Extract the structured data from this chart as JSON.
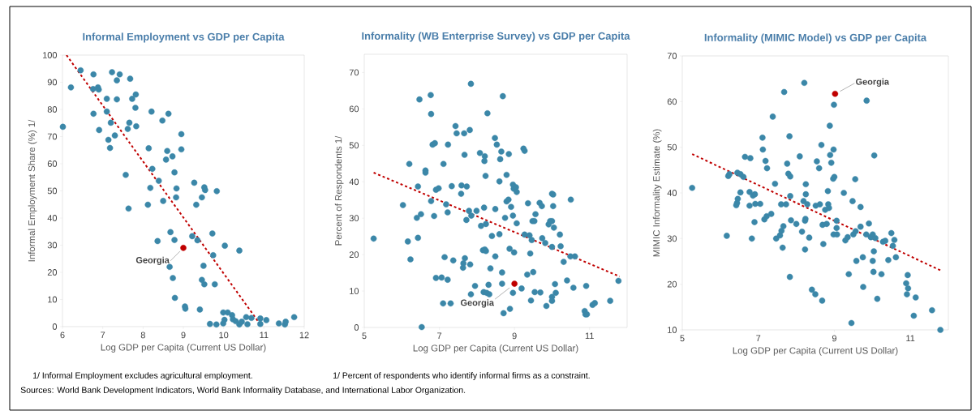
{
  "chart_data": [
    {
      "type": "scatter",
      "title": "Informal Employment vs GDP per Capita",
      "xlabel": "Log GDP per Capita (Current US Dollar)",
      "ylabel": "Informal Employment Share (%) 1/",
      "xlim": [
        6,
        12
      ],
      "ylim": [
        0,
        100
      ],
      "xticks": [
        6,
        7,
        8,
        9,
        10,
        11,
        12
      ],
      "yticks": [
        0,
        10,
        20,
        30,
        40,
        50,
        60,
        70,
        80,
        90,
        100
      ],
      "marker": "circle",
      "annotations": [
        "1/ Informal Employment excludes agricultural employment.",
        "Sources: World Bank Development Indicators, World Bank Informality Database, and International Labor Organization."
      ],
      "series": [
        {
          "color": "#3b87a8",
          "x": [
            6.01,
            6.21,
            6.45,
            6.77,
            6.76,
            6.88,
            6.9,
            6.77,
            6.91,
            7.1,
            7.1,
            7.14,
            7.18,
            7.2,
            7.23,
            7.35,
            7.42,
            7.35,
            7.3,
            7.57,
            7.62,
            7.66,
            7.68,
            7.73,
            7.82,
            7.81,
            7.83,
            7.64,
            8.14,
            8.21,
            8.23,
            8.18,
            8.12,
            8.36,
            8.39,
            8.48,
            8.5,
            8.63,
            8.6,
            8.57,
            8.73,
            8.78,
            8.83,
            8.82,
            8.68,
            8.78,
            8.66,
            8.74,
            8.79,
            8.95,
            8.95,
            9.04,
            9.05,
            9.22,
            9.27,
            9.32,
            9.35,
            9.41,
            9.46,
            9.52,
            9.54,
            9.5,
            9.46,
            9.52,
            9.66,
            9.72,
            9.74,
            9.78,
            9.82,
            9.83,
            9.99,
            10.02,
            9.99,
            10.03,
            10.1,
            10.21,
            10.23,
            10.3,
            10.39,
            10.39,
            10.45,
            10.56,
            10.59,
            10.69,
            10.91,
            10.91,
            11.06,
            11.37,
            11.52,
            11.54,
            11.75
          ],
          "values": [
            73.6,
            88.1,
            94.4,
            92.9,
            87.5,
            88.1,
            87.3,
            78.4,
            72.4,
            83.9,
            79.2,
            68.8,
            65.8,
            75.1,
            93.7,
            90.7,
            92.9,
            83.7,
            70.4,
            55.9,
            72.8,
            75.1,
            91.3,
            83.9,
            85.5,
            80.6,
            73.8,
            43.5,
            65.7,
            79.2,
            58.1,
            51.1,
            44.9,
            31.5,
            53.7,
            75.9,
            46.3,
            78.4,
            64.7,
            61.5,
            62.7,
            56.8,
            50.9,
            47.6,
            34.8,
            31.9,
            22.0,
            17.9,
            10.6,
            70.9,
            65.3,
            7.4,
            6.6,
            33.3,
            53.0,
            44.9,
            31.8,
            6.3,
            47.6,
            51.3,
            50.3,
            22.4,
            17.2,
            15.6,
            1.0,
            34.3,
            26.3,
            15.6,
            0.8,
            49.9,
            5.2,
            2.5,
            1.2,
            29.8,
            5.2,
            4.2,
            2.7,
            2.0,
            28.0,
            0.8,
            1.8,
            3.5,
            0.9,
            3.2,
            3.0,
            1.0,
            2.4,
            1.2,
            0.8,
            1.8,
            3.5
          ]
        },
        {
          "name": "Georgia",
          "color": "#c00000",
          "x": [
            9.0
          ],
          "values": [
            29.0
          ]
        },
        {
          "type": "line",
          "color": "#c00000",
          "line_style": "dashed",
          "marker": "none",
          "x": [
            6.1,
            10.95
          ],
          "values": [
            100,
            0
          ]
        }
      ]
    },
    {
      "type": "scatter",
      "title": "Informality (WB Enterprise Survey) vs GDP per Capita",
      "xlabel": "Log GDP per Capita (Current US Dollar)",
      "ylabel": "Percent of Respondents 1/",
      "xlim": [
        5,
        12
      ],
      "ylim": [
        0,
        75
      ],
      "xticks": [
        5,
        7,
        9,
        11
      ],
      "yticks": [
        0,
        10,
        20,
        30,
        40,
        50,
        60,
        70
      ],
      "marker": "circle",
      "annotations": [
        "1/ Percent of respondents who identify informal firms as a constraint."
      ],
      "series": [
        {
          "color": "#3b87a8",
          "x": [
            5.25,
            6.03,
            6.2,
            6.16,
            6.23,
            6.47,
            6.43,
            6.4,
            6.51,
            6.43,
            6.53,
            6.63,
            6.63,
            6.77,
            6.78,
            6.82,
            6.88,
            6.78,
            6.86,
            6.91,
            6.98,
            6.91,
            7.06,
            7.11,
            7.23,
            7.18,
            7.22,
            7.14,
            7.22,
            7.1,
            7.3,
            7.33,
            7.37,
            7.43,
            7.46,
            7.58,
            7.59,
            7.66,
            7.67,
            7.73,
            7.72,
            7.68,
            7.64,
            7.63,
            7.81,
            7.79,
            7.85,
            7.82,
            7.84,
            7.84,
            7.95,
            7.99,
            8.08,
            8.11,
            8.16,
            8.21,
            8.24,
            8.21,
            8.2,
            8.23,
            8.19,
            8.24,
            8.28,
            8.18,
            8.26,
            8.33,
            8.31,
            8.36,
            8.4,
            8.48,
            8.53,
            8.49,
            8.49,
            8.6,
            8.62,
            8.65,
            8.6,
            8.69,
            8.67,
            8.67,
            8.71,
            8.75,
            8.79,
            8.79,
            8.84,
            8.85,
            8.87,
            8.91,
            8.88,
            8.96,
            8.96,
            8.98,
            9.04,
            9.06,
            9.06,
            8.99,
            8.96,
            9.19,
            9.24,
            9.27,
            9.27,
            9.34,
            9.36,
            9.4,
            9.42,
            9.44,
            9.46,
            9.48,
            9.53,
            9.5,
            9.54,
            9.56,
            9.67,
            9.73,
            9.69,
            9.74,
            9.82,
            9.85,
            9.91,
            9.95,
            10.0,
            10.0,
            10.03,
            10.03,
            10.05,
            10.0,
            10.0,
            10.0,
            10.08,
            10.1,
            10.21,
            10.23,
            10.31,
            10.4,
            10.5,
            10.49,
            10.61,
            10.57,
            10.87,
            10.89,
            10.93,
            10.91,
            11.08,
            11.14,
            11.55,
            11.77
          ],
          "values": [
            24.4,
            33.6,
            44.9,
            23.6,
            18.7,
            62.6,
            38.7,
            30.1,
            31.1,
            24.6,
            0.1,
            43.1,
            42.5,
            63.8,
            58.6,
            50.2,
            50.6,
            34.7,
            30.6,
            37.8,
            38.2,
            13.6,
            13.7,
            44.9,
            50.2,
            33.8,
            31.6,
            19.3,
            13.1,
            6.6,
            6.6,
            38.8,
            18.4,
            55.3,
            53.3,
            36.7,
            39.0,
            53.3,
            47.4,
            38.7,
            29.5,
            19.0,
            17.6,
            16.4,
            54.2,
            32.0,
            30.7,
            17.3,
            9.1,
            66.9,
            11.4,
            32.0,
            47.9,
            27.9,
            21.2,
            21.4,
            21.0,
            47.0,
            45.7,
            41.6,
            32.9,
            28.4,
            58.8,
            9.7,
            9.5,
            9.1,
            11.7,
            16.2,
            25.1,
            52.0,
            50.2,
            19.5,
            32.5,
            40.1,
            46.2,
            48.3,
            25.6,
            63.5,
            15.1,
            12.0,
            3.9,
            30.1,
            41.9,
            34.6,
            35.1,
            47.6,
            21.6,
            33.1,
            5.1,
            30.7,
            39.2,
            38.1,
            38.5,
            37.2,
            28.6,
            20.6,
            9.5,
            10.7,
            49.1,
            48.5,
            25.5,
            14.5,
            34.1,
            25.3,
            20.3,
            7.4,
            24.0,
            29.2,
            29.2,
            15.2,
            9.7,
            31.1,
            34.2,
            33.3,
            9.6,
            24.5,
            23.2,
            5.9,
            28.3,
            29.2,
            29.2,
            36.7,
            36.5,
            33.3,
            27.4,
            22.1,
            8.4,
            7.3,
            11.9,
            9.5,
            25.5,
            22.3,
            18.0,
            12.9,
            35.1,
            19.5,
            19.5,
            10.9,
            4.5,
            3.6,
            3.6,
            11.4,
            6.2,
            6.7,
            7.3,
            12.8
          ]
        },
        {
          "name": "Georgia",
          "color": "#c00000",
          "x": [
            9.0
          ],
          "values": [
            12.0
          ]
        },
        {
          "type": "line",
          "color": "#c00000",
          "line_style": "dashed",
          "marker": "none",
          "x": [
            5.25,
            11.8
          ],
          "values": [
            42.5,
            14.0
          ]
        }
      ]
    },
    {
      "type": "scatter",
      "title": "Informality (MIMIC Model) vs GDP per Capita",
      "xlabel": "Log GDP per Capita (Current US Dollar)",
      "ylabel": "MIMIC Informality Estimate (%)",
      "xlim": [
        5,
        12
      ],
      "ylim": [
        10,
        70
      ],
      "xticks": [
        5,
        7,
        9,
        11
      ],
      "yticks": [
        10,
        20,
        30,
        40,
        50,
        60,
        70
      ],
      "marker": "circle",
      "series": [
        {
          "color": "#3b87a8",
          "x": [
            5.26,
            6.17,
            6.21,
            6.24,
            6.44,
            6.42,
            6.46,
            6.45,
            6.53,
            6.53,
            6.61,
            6.65,
            6.79,
            6.77,
            6.77,
            6.83,
            6.86,
            6.9,
            6.91,
            6.92,
            7.05,
            7.11,
            7.12,
            7.19,
            7.23,
            7.16,
            7.22,
            7.34,
            7.38,
            7.44,
            7.47,
            7.57,
            7.61,
            7.66,
            7.6,
            7.64,
            7.68,
            7.73,
            7.76,
            7.79,
            7.84,
            7.84,
            7.82,
            7.86,
            7.83,
            8.0,
            8.09,
            8.15,
            8.21,
            8.19,
            8.23,
            8.24,
            8.25,
            8.25,
            8.23,
            8.29,
            8.34,
            8.41,
            8.5,
            8.51,
            8.54,
            8.6,
            8.62,
            8.66,
            8.69,
            8.68,
            8.71,
            8.76,
            8.8,
            8.83,
            8.84,
            8.86,
            8.88,
            8.89,
            8.92,
            8.98,
            8.97,
            9.0,
            8.98,
            8.99,
            9.06,
            9.06,
            9.07,
            9.25,
            9.29,
            9.35,
            9.38,
            9.45,
            9.48,
            9.5,
            9.55,
            9.56,
            9.58,
            9.69,
            9.69,
            9.75,
            9.76,
            9.84,
            9.85,
            9.91,
            9.96,
            10.01,
            10.01,
            10.03,
            10.04,
            10.05,
            10.08,
            10.13,
            10.24,
            10.28,
            10.34,
            10.42,
            10.5,
            10.54,
            10.58,
            10.62,
            10.89,
            10.91,
            10.93,
            10.94,
            11.14,
            11.09,
            11.57,
            11.79
          ],
          "values": [
            41.1,
            30.6,
            43.7,
            44.1,
            37.8,
            37.3,
            38.7,
            44.4,
            44.1,
            40.1,
            43.5,
            47.9,
            47.6,
            40.2,
            37.2,
            30.0,
            39.4,
            33.6,
            39.7,
            37.6,
            37.6,
            52.1,
            49.5,
            47.0,
            45.4,
            34.2,
            34.9,
            35.4,
            56.7,
            42.0,
            30.0,
            30.7,
            31.7,
            32.7,
            37.5,
            28.0,
            62.1,
            37.5,
            46.4,
            44.2,
            43.6,
            39.3,
            52.4,
            34.0,
            21.6,
            33.2,
            48.0,
            31.5,
            64.1,
            38.2,
            33.9,
            34.3,
            39.7,
            41.9,
            27.6,
            37.5,
            30.2,
            18.8,
            17.8,
            37.2,
            46.9,
            45.4,
            37.5,
            50.5,
            33.0,
            16.4,
            28.8,
            36.3,
            33.2,
            40.4,
            37.5,
            36.7,
            54.7,
            48.3,
            46.6,
            30.9,
            43.1,
            43.5,
            49.5,
            59.3,
            32.3,
            33.9,
            30.9,
            40.0,
            29.6,
            30.3,
            22.2,
            11.5,
            38.2,
            30.9,
            43.0,
            31.6,
            25.1,
            36.9,
            32.6,
            25.9,
            19.4,
            30.9,
            60.2,
            33.3,
            30.3,
            30.9,
            25.1,
            22.7,
            27.2,
            48.2,
            30.1,
            16.8,
            22.2,
            29.3,
            29.5,
            25.3,
            31.2,
            28.4,
            29.7,
            25.9,
            20.2,
            17.8,
            22.0,
            19.1,
            17.1,
            13.1,
            14.3,
            10.0
          ]
        },
        {
          "name": "Georgia",
          "color": "#c00000",
          "x": [
            9.02
          ],
          "values": [
            61.7
          ]
        },
        {
          "type": "line",
          "color": "#c00000",
          "line_style": "dashed",
          "marker": "none",
          "x": [
            5.26,
            11.8
          ],
          "values": [
            48.5,
            23.0
          ]
        }
      ]
    }
  ]
}
